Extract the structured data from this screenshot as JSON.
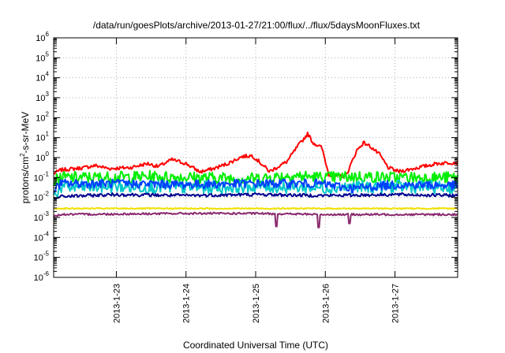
{
  "chart_data": {
    "type": "line",
    "title": "/data/run/goesPlots/archive/2013-01-27/21:00/flux/../flux/5daysMoonFluxes.txt",
    "xlabel": "Coordinated Universal Time (UTC)",
    "ylabel": {
      "pre": "protons/cm",
      "sup": "2",
      "post": "-s-sr-MeV"
    },
    "x_range_days": [
      22.1,
      27.9
    ],
    "x_ticks": [
      {
        "day": 23,
        "label": "2013-1-23"
      },
      {
        "day": 24,
        "label": "2013-1-24"
      },
      {
        "day": 25,
        "label": "2013-1-25"
      },
      {
        "day": 26,
        "label": "2013-1-26"
      },
      {
        "day": 27,
        "label": "2013-1-27"
      }
    ],
    "y_scale": "log",
    "y_exp_range": [
      -6,
      6
    ],
    "y_ticks": [
      {
        "base": "10",
        "exp": "-6"
      },
      {
        "base": "10",
        "exp": "-5"
      },
      {
        "base": "10",
        "exp": "-4"
      },
      {
        "base": "10",
        "exp": "-3"
      },
      {
        "base": "10",
        "exp": "-2"
      },
      {
        "base": "10",
        "exp": "-1"
      },
      {
        "base": "10",
        "exp": "0"
      },
      {
        "base": "10",
        "exp": "1"
      },
      {
        "base": "10",
        "exp": "2"
      },
      {
        "base": "10",
        "exp": "3"
      },
      {
        "base": "10",
        "exp": "4"
      },
      {
        "base": "10",
        "exp": "5"
      },
      {
        "base": "10",
        "exp": "6"
      }
    ],
    "grid": true,
    "series": [
      {
        "color": "#ff0000",
        "noise": 0.09,
        "points": [
          [
            22.1,
            -0.8
          ],
          [
            22.2,
            -0.62
          ],
          [
            22.5,
            -0.52
          ],
          [
            22.7,
            -0.4
          ],
          [
            22.9,
            -0.55
          ],
          [
            23.2,
            -0.5
          ],
          [
            23.45,
            -0.3
          ],
          [
            23.6,
            -0.45
          ],
          [
            23.8,
            -0.1
          ],
          [
            24.0,
            -0.3
          ],
          [
            24.2,
            -0.72
          ],
          [
            24.4,
            -0.55
          ],
          [
            24.6,
            -0.3
          ],
          [
            24.8,
            0.05
          ],
          [
            24.95,
            0.1
          ],
          [
            25.05,
            -0.2
          ],
          [
            25.2,
            -0.7
          ],
          [
            25.3,
            -0.5
          ],
          [
            25.45,
            -0.2
          ],
          [
            25.6,
            0.55
          ],
          [
            25.75,
            1.2
          ],
          [
            25.82,
            0.75
          ],
          [
            25.95,
            0.5
          ],
          [
            26.05,
            -0.85
          ],
          [
            26.2,
            -0.95
          ],
          [
            26.3,
            -0.9
          ],
          [
            26.45,
            0.35
          ],
          [
            26.55,
            0.75
          ],
          [
            26.65,
            0.55
          ],
          [
            26.78,
            0.15
          ],
          [
            26.9,
            -0.5
          ],
          [
            27.05,
            -0.7
          ],
          [
            27.2,
            -0.6
          ],
          [
            27.4,
            -0.45
          ],
          [
            27.6,
            -0.3
          ],
          [
            27.8,
            -0.25
          ],
          [
            27.9,
            -0.25
          ]
        ]
      },
      {
        "color": "#00ee00",
        "noise": 0.3,
        "points": [
          [
            22.1,
            -1.2
          ],
          [
            22.2,
            -1.0
          ],
          [
            22.8,
            -1.0
          ],
          [
            23.5,
            -0.95
          ],
          [
            24.2,
            -1.0
          ],
          [
            25.0,
            -1.05
          ],
          [
            25.5,
            -0.9
          ],
          [
            26.0,
            -1.0
          ],
          [
            26.5,
            -0.95
          ],
          [
            27.0,
            -1.0
          ],
          [
            27.9,
            -1.0
          ]
        ]
      },
      {
        "color": "#00c8c8",
        "noise": 0.32,
        "points": [
          [
            22.1,
            -1.9
          ],
          [
            22.2,
            -1.5
          ],
          [
            23.0,
            -1.45
          ],
          [
            24.0,
            -1.5
          ],
          [
            25.0,
            -1.45
          ],
          [
            26.0,
            -1.5
          ],
          [
            27.0,
            -1.45
          ],
          [
            27.9,
            -1.5
          ]
        ]
      },
      {
        "color": "#0040ff",
        "noise": 0.22,
        "points": [
          [
            22.1,
            -1.6
          ],
          [
            22.2,
            -1.3
          ],
          [
            23.0,
            -1.3
          ],
          [
            24.0,
            -1.35
          ],
          [
            25.0,
            -1.3
          ],
          [
            25.9,
            -1.3
          ],
          [
            26.4,
            -1.55
          ],
          [
            27.0,
            -1.35
          ],
          [
            27.9,
            -1.4
          ]
        ]
      },
      {
        "color": "#000090",
        "noise": 0.08,
        "points": [
          [
            22.1,
            -2.1
          ],
          [
            22.2,
            -1.95
          ],
          [
            23.0,
            -1.85
          ],
          [
            24.0,
            -1.9
          ],
          [
            25.0,
            -1.85
          ],
          [
            26.0,
            -1.9
          ],
          [
            27.0,
            -1.85
          ],
          [
            27.9,
            -1.9
          ]
        ]
      },
      {
        "color": "#f0e000",
        "noise": 0.03,
        "points": [
          [
            22.1,
            -2.55
          ],
          [
            27.9,
            -2.55
          ]
        ]
      },
      {
        "color": "#8b2a6e",
        "noise": 0.05,
        "dips": [
          [
            25.3,
            -3.45
          ],
          [
            25.9,
            -3.5
          ],
          [
            26.35,
            -3.3
          ]
        ],
        "points": [
          [
            22.1,
            -2.95
          ],
          [
            22.2,
            -2.85
          ],
          [
            24.0,
            -2.8
          ],
          [
            25.0,
            -2.8
          ],
          [
            26.0,
            -2.85
          ],
          [
            27.0,
            -2.85
          ],
          [
            27.9,
            -2.85
          ]
        ]
      }
    ]
  }
}
